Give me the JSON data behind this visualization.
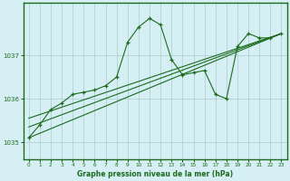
{
  "background_color": "#d6eff5",
  "plot_bg_color": "#d6eff5",
  "grid_color": "#aacccc",
  "line_color": "#1a6b1a",
  "border_color": "#1a6b1a",
  "xlabel": "Graphe pression niveau de la mer (hPa)",
  "ylim": [
    1034.6,
    1038.2
  ],
  "xlim": [
    -0.5,
    23.5
  ],
  "yticks": [
    1035,
    1036,
    1037
  ],
  "xticks": [
    0,
    1,
    2,
    3,
    4,
    5,
    6,
    7,
    8,
    9,
    10,
    11,
    12,
    13,
    14,
    15,
    16,
    17,
    18,
    19,
    20,
    21,
    22,
    23
  ],
  "series1_x": [
    0,
    1,
    2,
    3,
    4,
    5,
    6,
    7,
    8,
    9,
    10,
    11,
    12,
    13,
    14,
    15,
    16,
    17,
    18,
    19,
    20,
    21,
    22,
    23
  ],
  "series1_y": [
    1035.1,
    1035.4,
    1035.75,
    1035.9,
    1036.1,
    1036.15,
    1036.2,
    1036.3,
    1036.5,
    1037.3,
    1037.65,
    1037.85,
    1037.7,
    1036.9,
    1036.55,
    1036.6,
    1036.65,
    1036.1,
    1036.0,
    1037.2,
    1037.5,
    1037.4,
    1037.4,
    1037.5
  ],
  "line1_x": [
    0,
    23
  ],
  "line1_y": [
    1035.1,
    1037.5
  ],
  "line2_x": [
    0,
    23
  ],
  "line2_y": [
    1035.35,
    1037.5
  ],
  "line3_x": [
    0,
    23
  ],
  "line3_y": [
    1035.55,
    1037.5
  ]
}
